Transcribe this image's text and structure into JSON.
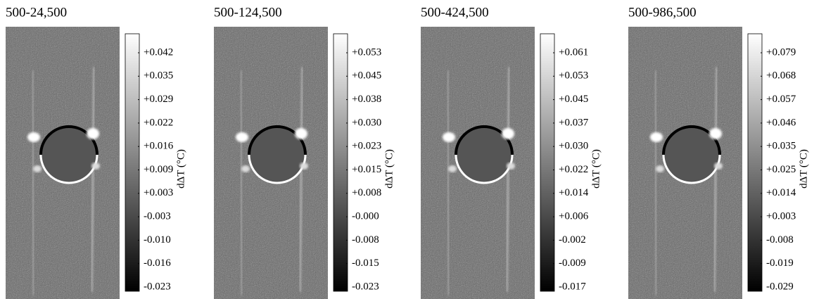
{
  "figure": {
    "colorbar_label": "dΔT (°C)",
    "panels": [
      {
        "title": "500-24,500",
        "ticks": [
          "+0.042",
          "+0.035",
          "+0.029",
          "+0.022",
          "+0.016",
          "+0.009",
          "+0.003",
          "-0.003",
          "-0.010",
          "-0.016",
          "-0.023"
        ]
      },
      {
        "title": "500-124,500",
        "ticks": [
          "+0.053",
          "+0.045",
          "+0.038",
          "+0.030",
          "+0.023",
          "+0.015",
          "+0.008",
          "-0.000",
          "-0.008",
          "-0.015",
          "-0.023"
        ]
      },
      {
        "title": "500-424,500",
        "ticks": [
          "+0.061",
          "+0.053",
          "+0.045",
          "+0.037",
          "+0.030",
          "+0.022",
          "+0.014",
          "+0.006",
          "-0.002",
          "-0.009",
          "-0.017"
        ]
      },
      {
        "title": "500-986,500",
        "ticks": [
          "+0.079",
          "+0.068",
          "+0.057",
          "+0.046",
          "+0.035",
          "+0.025",
          "+0.014",
          "+0.003",
          "-0.008",
          "-0.019",
          "-0.029"
        ]
      }
    ]
  }
}
